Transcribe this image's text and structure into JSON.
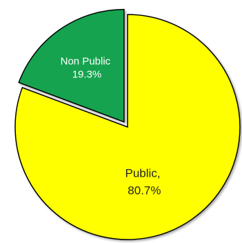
{
  "chart_data": {
    "type": "pie",
    "start_angle_deg": 0,
    "direction": "clockwise",
    "exploded": "Non Public",
    "slices": [
      {
        "name": "Public",
        "value": 80.7,
        "label_line1": "Public,",
        "label_line2": "80.7%",
        "color": "#ffff00",
        "label_color": "#222222"
      },
      {
        "name": "Non Public",
        "value": 19.3,
        "label_line1": "Non Public",
        "label_line2": "19.3%",
        "color": "#16a350",
        "label_color": "#ffffff"
      }
    ]
  }
}
